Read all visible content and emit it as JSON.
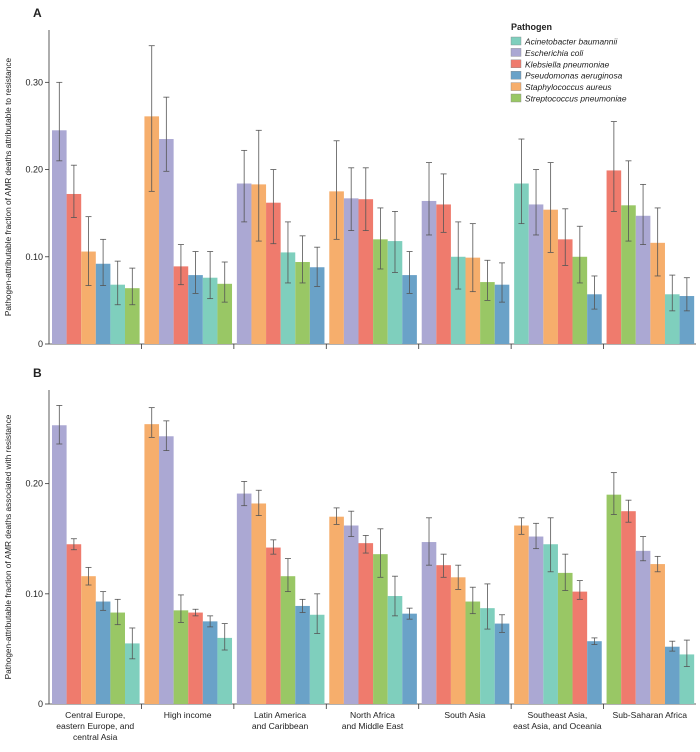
{
  "colors": {
    "Acinetobacter baumannii": "#7fcfbd",
    "Escherichia coli": "#aba8d3",
    "Klebsiella pneumoniae": "#ef7b6d",
    "Pseudomonas aeruginosa": "#6aa2c8",
    "Staphylococcus aureus": "#f6ae6c",
    "Streptococcus pneumoniae": "#99c765"
  },
  "legend": {
    "title": "Pathogen",
    "items": [
      "Acinetobacter baumannii",
      "Escherichia coli",
      "Klebsiella pneumoniae",
      "Pseudomonas aeruginosa",
      "Staphylococcus aureus",
      "Streptococcus pneumoniae"
    ]
  },
  "chart_data": [
    {
      "panel": "A",
      "type": "bar",
      "ylabel": "Pathogen-attributable fraction of AMR deaths attributable to resistance",
      "ylim": [
        0,
        0.36
      ],
      "yticks": [
        0,
        0.1,
        0.2,
        0.3
      ],
      "yticklabels": [
        "0",
        "0.10",
        "0.20",
        "0.30"
      ],
      "groups": [
        {
          "category": "Central Europe, eastern Europe, and central Asia",
          "bars": [
            {
              "pathogen": "Escherichia coli",
              "value": 0.245,
              "lo": 0.21,
              "hi": 0.3
            },
            {
              "pathogen": "Klebsiella pneumoniae",
              "value": 0.172,
              "lo": 0.145,
              "hi": 0.205
            },
            {
              "pathogen": "Staphylococcus aureus",
              "value": 0.106,
              "lo": 0.067,
              "hi": 0.146
            },
            {
              "pathogen": "Pseudomonas aeruginosa",
              "value": 0.092,
              "lo": 0.067,
              "hi": 0.12
            },
            {
              "pathogen": "Acinetobacter baumannii",
              "value": 0.068,
              "lo": 0.045,
              "hi": 0.095
            },
            {
              "pathogen": "Streptococcus pneumoniae",
              "value": 0.064,
              "lo": 0.045,
              "hi": 0.087
            }
          ]
        },
        {
          "category": "High income",
          "bars": [
            {
              "pathogen": "Staphylococcus aureus",
              "value": 0.261,
              "lo": 0.175,
              "hi": 0.342
            },
            {
              "pathogen": "Escherichia coli",
              "value": 0.235,
              "lo": 0.198,
              "hi": 0.283
            },
            {
              "pathogen": "Klebsiella pneumoniae",
              "value": 0.089,
              "lo": 0.068,
              "hi": 0.114
            },
            {
              "pathogen": "Pseudomonas aeruginosa",
              "value": 0.079,
              "lo": 0.058,
              "hi": 0.106
            },
            {
              "pathogen": "Acinetobacter baumannii",
              "value": 0.076,
              "lo": 0.052,
              "hi": 0.106
            },
            {
              "pathogen": "Streptococcus pneumoniae",
              "value": 0.069,
              "lo": 0.048,
              "hi": 0.094
            }
          ]
        },
        {
          "category": "Latin America and Caribbean",
          "bars": [
            {
              "pathogen": "Escherichia coli",
              "value": 0.184,
              "lo": 0.14,
              "hi": 0.222
            },
            {
              "pathogen": "Staphylococcus aureus",
              "value": 0.183,
              "lo": 0.118,
              "hi": 0.245
            },
            {
              "pathogen": "Klebsiella pneumoniae",
              "value": 0.162,
              "lo": 0.115,
              "hi": 0.2
            },
            {
              "pathogen": "Acinetobacter baumannii",
              "value": 0.105,
              "lo": 0.07,
              "hi": 0.14
            },
            {
              "pathogen": "Streptococcus pneumoniae",
              "value": 0.094,
              "lo": 0.07,
              "hi": 0.124
            },
            {
              "pathogen": "Pseudomonas aeruginosa",
              "value": 0.088,
              "lo": 0.066,
              "hi": 0.111
            }
          ]
        },
        {
          "category": "North Africa and Middle East",
          "bars": [
            {
              "pathogen": "Staphylococcus aureus",
              "value": 0.175,
              "lo": 0.12,
              "hi": 0.233
            },
            {
              "pathogen": "Escherichia coli",
              "value": 0.167,
              "lo": 0.13,
              "hi": 0.202
            },
            {
              "pathogen": "Klebsiella pneumoniae",
              "value": 0.166,
              "lo": 0.13,
              "hi": 0.202
            },
            {
              "pathogen": "Streptococcus pneumoniae",
              "value": 0.12,
              "lo": 0.086,
              "hi": 0.156
            },
            {
              "pathogen": "Acinetobacter baumannii",
              "value": 0.118,
              "lo": 0.082,
              "hi": 0.152
            },
            {
              "pathogen": "Pseudomonas aeruginosa",
              "value": 0.079,
              "lo": 0.058,
              "hi": 0.106
            }
          ]
        },
        {
          "category": "South Asia",
          "bars": [
            {
              "pathogen": "Escherichia coli",
              "value": 0.164,
              "lo": 0.125,
              "hi": 0.208
            },
            {
              "pathogen": "Klebsiella pneumoniae",
              "value": 0.16,
              "lo": 0.128,
              "hi": 0.195
            },
            {
              "pathogen": "Acinetobacter baumannii",
              "value": 0.1,
              "lo": 0.063,
              "hi": 0.14
            },
            {
              "pathogen": "Staphylococcus aureus",
              "value": 0.099,
              "lo": 0.06,
              "hi": 0.138
            },
            {
              "pathogen": "Streptococcus pneumoniae",
              "value": 0.071,
              "lo": 0.05,
              "hi": 0.096
            },
            {
              "pathogen": "Pseudomonas aeruginosa",
              "value": 0.068,
              "lo": 0.048,
              "hi": 0.093
            }
          ]
        },
        {
          "category": "Southeast Asia, east Asia, and Oceania",
          "bars": [
            {
              "pathogen": "Acinetobacter baumannii",
              "value": 0.184,
              "lo": 0.138,
              "hi": 0.235
            },
            {
              "pathogen": "Escherichia coli",
              "value": 0.16,
              "lo": 0.125,
              "hi": 0.2
            },
            {
              "pathogen": "Staphylococcus aureus",
              "value": 0.154,
              "lo": 0.105,
              "hi": 0.208
            },
            {
              "pathogen": "Klebsiella pneumoniae",
              "value": 0.12,
              "lo": 0.09,
              "hi": 0.155
            },
            {
              "pathogen": "Streptococcus pneumoniae",
              "value": 0.1,
              "lo": 0.07,
              "hi": 0.135
            },
            {
              "pathogen": "Pseudomonas aeruginosa",
              "value": 0.057,
              "lo": 0.04,
              "hi": 0.078
            }
          ]
        },
        {
          "category": "Sub-Saharan Africa",
          "bars": [
            {
              "pathogen": "Klebsiella pneumoniae",
              "value": 0.199,
              "lo": 0.152,
              "hi": 0.255
            },
            {
              "pathogen": "Streptococcus pneumoniae",
              "value": 0.159,
              "lo": 0.118,
              "hi": 0.21
            },
            {
              "pathogen": "Escherichia coli",
              "value": 0.147,
              "lo": 0.114,
              "hi": 0.183
            },
            {
              "pathogen": "Staphylococcus aureus",
              "value": 0.116,
              "lo": 0.078,
              "hi": 0.156
            },
            {
              "pathogen": "Acinetobacter baumannii",
              "value": 0.057,
              "lo": 0.038,
              "hi": 0.079
            },
            {
              "pathogen": "Pseudomonas aeruginosa",
              "value": 0.055,
              "lo": 0.038,
              "hi": 0.076
            }
          ]
        }
      ]
    },
    {
      "panel": "B",
      "type": "bar",
      "ylabel": "Pathogen-attributable fraction of AMR deaths associated with resistance",
      "ylim": [
        0,
        0.285
      ],
      "yticks": [
        0,
        0.1,
        0.2
      ],
      "yticklabels": [
        "0",
        "0.10",
        "0.20"
      ],
      "groups": [
        {
          "category": "Central Europe, eastern Europe, and central Asia",
          "bars": [
            {
              "pathogen": "Escherichia coli",
              "value": 0.253,
              "lo": 0.236,
              "hi": 0.271
            },
            {
              "pathogen": "Klebsiella pneumoniae",
              "value": 0.145,
              "lo": 0.14,
              "hi": 0.15
            },
            {
              "pathogen": "Staphylococcus aureus",
              "value": 0.116,
              "lo": 0.108,
              "hi": 0.124
            },
            {
              "pathogen": "Pseudomonas aeruginosa",
              "value": 0.093,
              "lo": 0.085,
              "hi": 0.102
            },
            {
              "pathogen": "Streptococcus pneumoniae",
              "value": 0.083,
              "lo": 0.072,
              "hi": 0.095
            },
            {
              "pathogen": "Acinetobacter baumannii",
              "value": 0.055,
              "lo": 0.041,
              "hi": 0.069
            }
          ]
        },
        {
          "category": "High income",
          "bars": [
            {
              "pathogen": "Staphylococcus aureus",
              "value": 0.254,
              "lo": 0.242,
              "hi": 0.269
            },
            {
              "pathogen": "Escherichia coli",
              "value": 0.243,
              "lo": 0.23,
              "hi": 0.257
            },
            {
              "pathogen": "Streptococcus pneumoniae",
              "value": 0.085,
              "lo": 0.074,
              "hi": 0.099
            },
            {
              "pathogen": "Klebsiella pneumoniae",
              "value": 0.083,
              "lo": 0.08,
              "hi": 0.086
            },
            {
              "pathogen": "Pseudomonas aeruginosa",
              "value": 0.075,
              "lo": 0.07,
              "hi": 0.08
            },
            {
              "pathogen": "Acinetobacter baumannii",
              "value": 0.06,
              "lo": 0.049,
              "hi": 0.073
            }
          ]
        },
        {
          "category": "Latin America and Caribbean",
          "bars": [
            {
              "pathogen": "Escherichia coli",
              "value": 0.191,
              "lo": 0.18,
              "hi": 0.202
            },
            {
              "pathogen": "Staphylococcus aureus",
              "value": 0.182,
              "lo": 0.171,
              "hi": 0.194
            },
            {
              "pathogen": "Klebsiella pneumoniae",
              "value": 0.142,
              "lo": 0.136,
              "hi": 0.149
            },
            {
              "pathogen": "Streptococcus pneumoniae",
              "value": 0.116,
              "lo": 0.102,
              "hi": 0.132
            },
            {
              "pathogen": "Pseudomonas aeruginosa",
              "value": 0.089,
              "lo": 0.083,
              "hi": 0.095
            },
            {
              "pathogen": "Acinetobacter baumannii",
              "value": 0.081,
              "lo": 0.064,
              "hi": 0.1
            }
          ]
        },
        {
          "category": "North Africa and Middle East",
          "bars": [
            {
              "pathogen": "Staphylococcus aureus",
              "value": 0.17,
              "lo": 0.163,
              "hi": 0.178
            },
            {
              "pathogen": "Escherichia coli",
              "value": 0.162,
              "lo": 0.152,
              "hi": 0.175
            },
            {
              "pathogen": "Klebsiella pneumoniae",
              "value": 0.146,
              "lo": 0.137,
              "hi": 0.153
            },
            {
              "pathogen": "Streptococcus pneumoniae",
              "value": 0.136,
              "lo": 0.115,
              "hi": 0.159
            },
            {
              "pathogen": "Acinetobacter baumannii",
              "value": 0.098,
              "lo": 0.08,
              "hi": 0.116
            },
            {
              "pathogen": "Pseudomonas aeruginosa",
              "value": 0.082,
              "lo": 0.077,
              "hi": 0.087
            }
          ]
        },
        {
          "category": "South Asia",
          "bars": [
            {
              "pathogen": "Escherichia coli",
              "value": 0.147,
              "lo": 0.126,
              "hi": 0.169
            },
            {
              "pathogen": "Klebsiella pneumoniae",
              "value": 0.126,
              "lo": 0.115,
              "hi": 0.136
            },
            {
              "pathogen": "Staphylococcus aureus",
              "value": 0.115,
              "lo": 0.104,
              "hi": 0.126
            },
            {
              "pathogen": "Streptococcus pneumoniae",
              "value": 0.093,
              "lo": 0.082,
              "hi": 0.106
            },
            {
              "pathogen": "Acinetobacter baumannii",
              "value": 0.087,
              "lo": 0.068,
              "hi": 0.109
            },
            {
              "pathogen": "Pseudomonas aeruginosa",
              "value": 0.073,
              "lo": 0.065,
              "hi": 0.081
            }
          ]
        },
        {
          "category": "Southeast Asia, east Asia, and Oceania",
          "bars": [
            {
              "pathogen": "Staphylococcus aureus",
              "value": 0.162,
              "lo": 0.154,
              "hi": 0.169
            },
            {
              "pathogen": "Escherichia coli",
              "value": 0.152,
              "lo": 0.141,
              "hi": 0.164
            },
            {
              "pathogen": "Acinetobacter baumannii",
              "value": 0.145,
              "lo": 0.12,
              "hi": 0.169
            },
            {
              "pathogen": "Streptococcus pneumoniae",
              "value": 0.119,
              "lo": 0.103,
              "hi": 0.136
            },
            {
              "pathogen": "Klebsiella pneumoniae",
              "value": 0.102,
              "lo": 0.095,
              "hi": 0.112
            },
            {
              "pathogen": "Pseudomonas aeruginosa",
              "value": 0.057,
              "lo": 0.054,
              "hi": 0.06
            }
          ]
        },
        {
          "category": "Sub-Saharan Africa",
          "bars": [
            {
              "pathogen": "Streptococcus pneumoniae",
              "value": 0.19,
              "lo": 0.172,
              "hi": 0.21
            },
            {
              "pathogen": "Klebsiella pneumoniae",
              "value": 0.175,
              "lo": 0.165,
              "hi": 0.185
            },
            {
              "pathogen": "Escherichia coli",
              "value": 0.139,
              "lo": 0.13,
              "hi": 0.152
            },
            {
              "pathogen": "Staphylococcus aureus",
              "value": 0.127,
              "lo": 0.12,
              "hi": 0.134
            },
            {
              "pathogen": "Pseudomonas aeruginosa",
              "value": 0.052,
              "lo": 0.048,
              "hi": 0.057
            },
            {
              "pathogen": "Acinetobacter baumannii",
              "value": 0.045,
              "lo": 0.034,
              "hi": 0.058
            }
          ]
        }
      ]
    }
  ],
  "x_category_labels": [
    [
      "Central Europe,",
      "eastern Europe, and",
      "central Asia"
    ],
    [
      "High income"
    ],
    [
      "Latin America",
      "and Caribbean"
    ],
    [
      "North Africa",
      "and Middle East"
    ],
    [
      "South Asia"
    ],
    [
      "Southeast Asia,",
      "east Asia, and Oceania"
    ],
    [
      "Sub-Saharan Africa"
    ]
  ]
}
